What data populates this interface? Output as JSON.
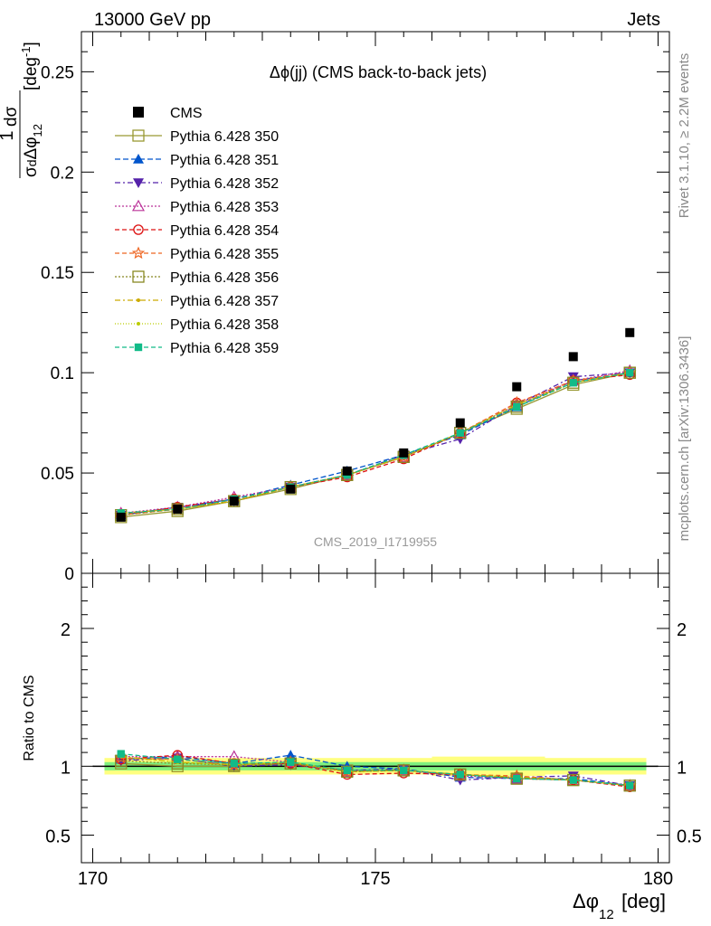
{
  "header": {
    "left": "13000 GeV pp",
    "right": "Jets"
  },
  "side": {
    "rivet": "Rivet 3.1.10, ≥ 2.2M events",
    "mcplots": "mcplots.cern.ch [arXiv:1306.3436]"
  },
  "plot_title": "Δϕ(jj) (CMS back-to-back jets)",
  "watermark": "CMS_2019_I1719955",
  "ratio_ylabel": "Ratio to CMS",
  "colors": {
    "data": "#000000",
    "band_inner": "#7ff07f",
    "band_outer": "#ffff80"
  },
  "chart_data": [
    {
      "type": "line",
      "panel": "main",
      "xlabel": "Δϕ 12 [deg]",
      "ylabel": "1/σ dσ/dΔϕ 12 [deg^-1]",
      "xlim": [
        169.8,
        180.2
      ],
      "ylim": [
        0,
        0.27
      ],
      "yticks": [
        "0",
        "0.05",
        "0.1",
        "0.15",
        "0.2",
        "0.25"
      ],
      "xticks": [
        "170",
        "175",
        "180"
      ],
      "x": [
        170.5,
        171.5,
        172.5,
        173.5,
        174.5,
        175.5,
        176.5,
        177.5,
        178.5,
        179.5
      ],
      "data": {
        "name": "CMS",
        "values": [
          0.028,
          0.032,
          0.036,
          0.042,
          0.051,
          0.06,
          0.075,
          0.093,
          0.108,
          0.12
        ]
      },
      "series": [
        {
          "name": "Pythia 6.428 350",
          "color": "#999933",
          "dash": "",
          "marker": "open-square",
          "values": [
            0.028,
            0.031,
            0.036,
            0.042,
            0.049,
            0.058,
            0.07,
            0.082,
            0.094,
            0.1
          ]
        },
        {
          "name": "Pythia 6.428 351",
          "color": "#0055cc",
          "dash": "6,3",
          "marker": "triangle-up",
          "values": [
            0.029,
            0.033,
            0.037,
            0.044,
            0.051,
            0.059,
            0.069,
            0.083,
            0.096,
            0.1
          ]
        },
        {
          "name": "Pythia 6.428 352",
          "color": "#5522aa",
          "dash": "6,3,2,3",
          "marker": "triangle-down",
          "values": [
            0.029,
            0.033,
            0.036,
            0.043,
            0.049,
            0.059,
            0.067,
            0.084,
            0.098,
            0.1
          ]
        },
        {
          "name": "Pythia 6.428 353",
          "color": "#bb3399",
          "dash": "2,2",
          "marker": "open-triangle-up",
          "values": [
            0.03,
            0.033,
            0.038,
            0.043,
            0.049,
            0.058,
            0.07,
            0.084,
            0.096,
            0.101
          ]
        },
        {
          "name": "Pythia 6.428 354",
          "color": "#dd1111",
          "dash": "5,3",
          "marker": "open-circle",
          "values": [
            0.029,
            0.033,
            0.037,
            0.043,
            0.048,
            0.057,
            0.07,
            0.085,
            0.096,
            0.099
          ]
        },
        {
          "name": "Pythia 6.428 355",
          "color": "#ee6622",
          "dash": "5,3",
          "marker": "open-star",
          "values": [
            0.029,
            0.032,
            0.036,
            0.043,
            0.049,
            0.058,
            0.07,
            0.085,
            0.096,
            0.1
          ]
        },
        {
          "name": "Pythia 6.428 356",
          "color": "#888822",
          "dash": "2,2",
          "marker": "open-square",
          "values": [
            0.029,
            0.032,
            0.036,
            0.043,
            0.049,
            0.058,
            0.07,
            0.083,
            0.095,
            0.1
          ]
        },
        {
          "name": "Pythia 6.428 357",
          "color": "#ccaa00",
          "dash": "6,3,2,3",
          "marker": "small-dot",
          "values": [
            0.03,
            0.032,
            0.036,
            0.043,
            0.049,
            0.058,
            0.07,
            0.084,
            0.095,
            0.1
          ]
        },
        {
          "name": "Pythia 6.428 358",
          "color": "#bbcc00",
          "dash": "1,2",
          "marker": "small-dot",
          "values": [
            0.03,
            0.032,
            0.036,
            0.043,
            0.049,
            0.058,
            0.07,
            0.084,
            0.095,
            0.1
          ]
        },
        {
          "name": "Pythia 6.428 359",
          "color": "#11bb88",
          "dash": "5,3",
          "marker": "filled-square",
          "values": [
            0.03,
            0.032,
            0.037,
            0.043,
            0.049,
            0.059,
            0.07,
            0.083,
            0.095,
            0.1
          ]
        }
      ]
    },
    {
      "type": "line",
      "panel": "ratio",
      "ylabel": "Ratio to CMS",
      "xlim": [
        169.8,
        180.2
      ],
      "ylim": [
        0.3,
        2.4
      ],
      "yticks": [
        "0.5",
        "1",
        "2"
      ],
      "x": [
        170.5,
        171.5,
        172.5,
        173.5,
        174.5,
        175.5,
        176.5,
        177.5,
        178.5,
        179.5
      ],
      "band_outer": [
        0.06,
        0.06,
        0.06,
        0.06,
        0.06,
        0.06,
        0.07,
        0.07,
        0.06,
        0.06
      ],
      "band_inner": [
        0.03,
        0.03,
        0.03,
        0.03,
        0.03,
        0.03,
        0.03,
        0.03,
        0.03,
        0.03
      ],
      "series": [
        {
          "name": "Pythia 6.428 350",
          "values": [
            1.02,
            1.0,
            1.0,
            1.02,
            0.97,
            0.97,
            0.94,
            0.91,
            0.9,
            0.86
          ]
        },
        {
          "name": "Pythia 6.428 351",
          "values": [
            1.05,
            1.07,
            1.02,
            1.08,
            1.0,
            0.98,
            0.92,
            0.91,
            0.91,
            0.86
          ]
        },
        {
          "name": "Pythia 6.428 352",
          "values": [
            1.04,
            1.06,
            1.0,
            1.01,
            0.97,
            0.98,
            0.9,
            0.92,
            0.93,
            0.86
          ]
        },
        {
          "name": "Pythia 6.428 353",
          "values": [
            1.07,
            1.07,
            1.07,
            1.03,
            0.96,
            0.97,
            0.93,
            0.91,
            0.9,
            0.86
          ]
        },
        {
          "name": "Pythia 6.428 354",
          "values": [
            1.05,
            1.08,
            1.02,
            1.02,
            0.94,
            0.95,
            0.94,
            0.92,
            0.9,
            0.85
          ]
        },
        {
          "name": "Pythia 6.428 355",
          "values": [
            1.06,
            1.05,
            1.01,
            1.03,
            0.96,
            0.97,
            0.94,
            0.93,
            0.9,
            0.86
          ]
        },
        {
          "name": "Pythia 6.428 356",
          "values": [
            1.04,
            1.02,
            1.01,
            1.02,
            0.96,
            0.97,
            0.94,
            0.91,
            0.9,
            0.86
          ]
        },
        {
          "name": "Pythia 6.428 357",
          "values": [
            1.07,
            1.03,
            1.01,
            1.03,
            0.96,
            0.97,
            0.94,
            0.92,
            0.9,
            0.86
          ]
        },
        {
          "name": "Pythia 6.428 358",
          "values": [
            1.07,
            1.03,
            1.01,
            1.03,
            0.96,
            0.97,
            0.94,
            0.92,
            0.9,
            0.86
          ]
        },
        {
          "name": "Pythia 6.428 359",
          "values": [
            1.09,
            1.05,
            1.02,
            1.03,
            0.97,
            0.97,
            0.94,
            0.91,
            0.9,
            0.86
          ]
        }
      ]
    }
  ]
}
